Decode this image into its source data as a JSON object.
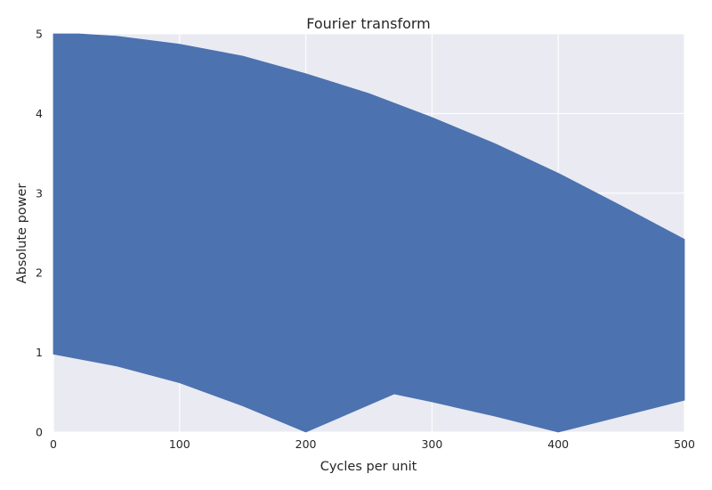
{
  "chart_data": {
    "type": "area",
    "title": "Fourier transform",
    "xlabel": "Cycles per unit",
    "ylabel": "Absolute power",
    "xlim": [
      0,
      500
    ],
    "ylim": [
      0,
      5
    ],
    "xticks": [
      "0",
      "100",
      "200",
      "300",
      "400",
      "500"
    ],
    "yticks": [
      "0",
      "1",
      "2",
      "3",
      "4",
      "5"
    ],
    "grid": true,
    "background": "#eaeaf2",
    "series": [
      {
        "color": "#4c72b0",
        "upper_envelope": {
          "x": [
            0,
            20,
            50,
            100,
            150,
            200,
            250,
            300,
            350,
            400,
            450,
            500
          ],
          "y": [
            5.0,
            5.0,
            4.97,
            4.87,
            4.72,
            4.5,
            4.25,
            3.95,
            3.62,
            3.25,
            2.84,
            2.42
          ]
        },
        "lower_envelope": {
          "x": [
            0,
            50,
            100,
            150,
            200,
            270,
            300,
            350,
            400,
            450,
            500
          ],
          "y": [
            0.98,
            0.83,
            0.62,
            0.33,
            0.0,
            0.48,
            0.38,
            0.2,
            0.0,
            0.2,
            0.4
          ]
        }
      }
    ]
  }
}
